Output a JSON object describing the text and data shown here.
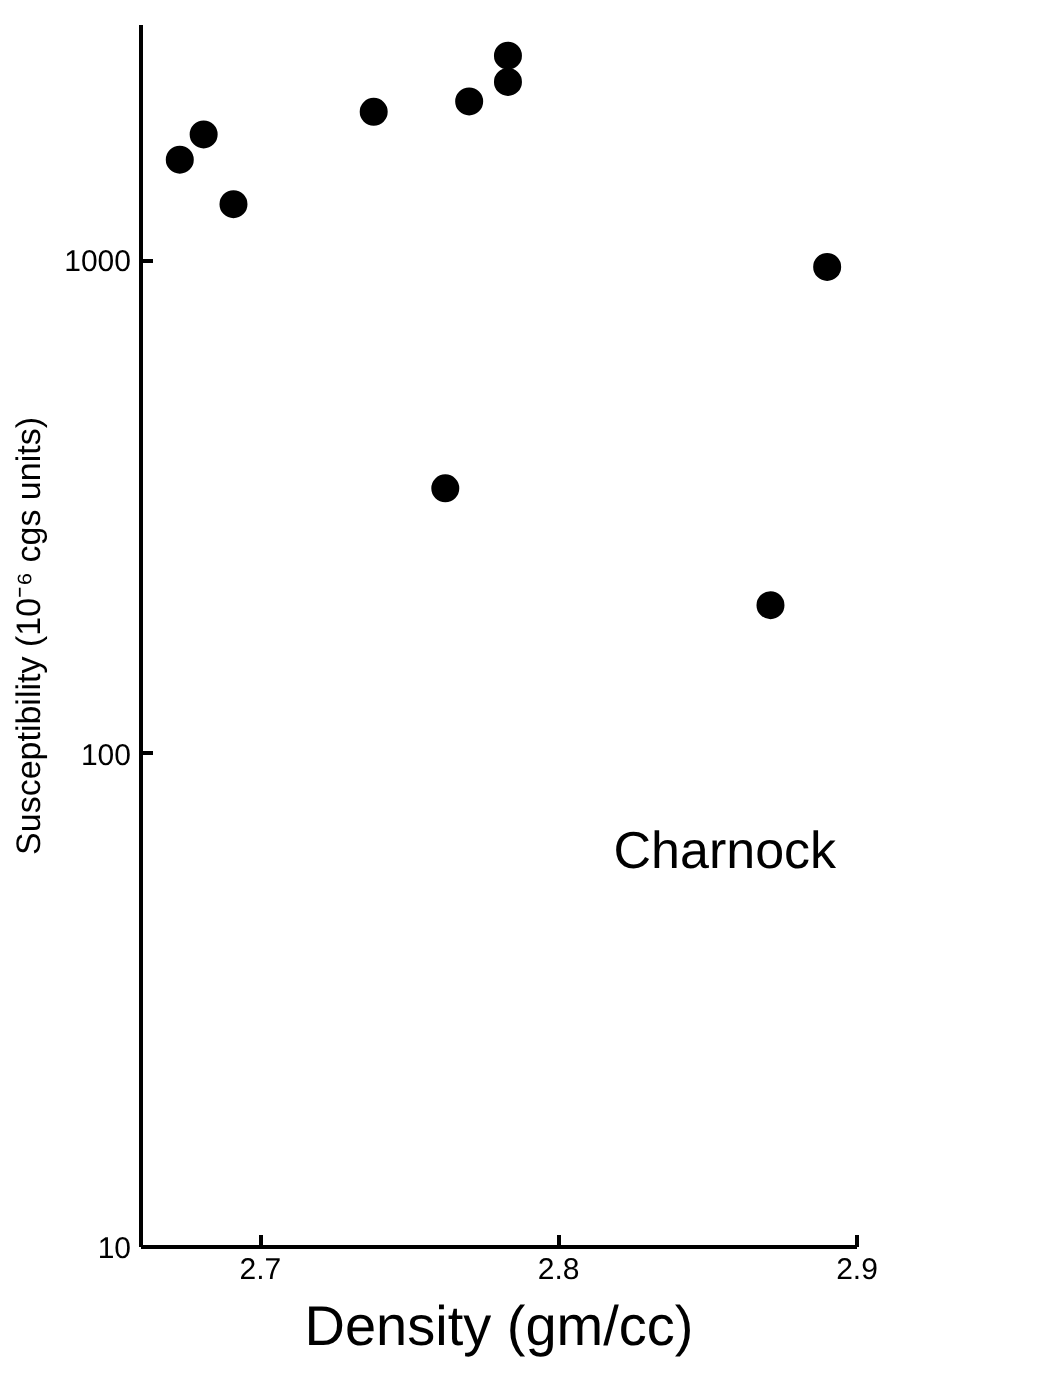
{
  "chart_data": {
    "type": "scatter",
    "xlabel": "Density (gm/cc)",
    "ylabel": "Susceptibility (10⁻⁶ cgs units)",
    "x": [
      2.673,
      2.681,
      2.691,
      2.738,
      2.77,
      2.783,
      2.783,
      2.762,
      2.871,
      2.89
    ],
    "series": [
      {
        "color": "#000000",
        "values": [
          1600,
          1800,
          1300,
          2000,
          2100,
          2600,
          2300,
          345,
          200,
          970
        ]
      }
    ],
    "xlim": [
      2.66,
      2.9
    ],
    "ylim": [
      10,
      3000
    ],
    "xticks": [
      2.7,
      2.8,
      2.9
    ],
    "yticks": [
      10,
      100,
      1000
    ],
    "log": "y",
    "grid": false,
    "marker": "circle",
    "annotations": [
      "Charnock"
    ]
  }
}
